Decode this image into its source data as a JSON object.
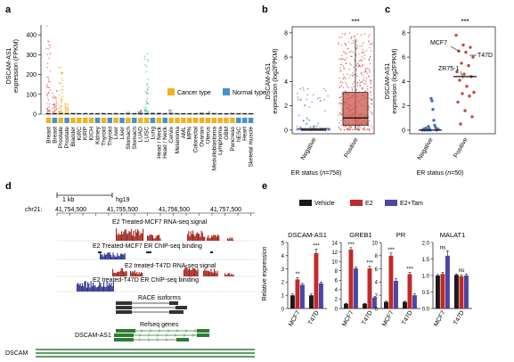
{
  "colors": {
    "cancer": "#F0B21E",
    "normal": "#4A90C8",
    "breast": "#E6615A",
    "lusc": "#3DBE8E",
    "ckw": "#5B5BA6",
    "box_positive": "#C9564B",
    "neg_dots": "#4F6FB0",
    "pos_dots": "#C8473F",
    "track_red": "#A2231D",
    "track_blue": "#2A2F8C",
    "track_black": "#222222",
    "gene_green": "#2E7D32",
    "vehicle": "#1A1A1A",
    "e2": "#C02A2A",
    "e2tam": "#4B45A6",
    "star_col": "#111111"
  },
  "panel_letters": {
    "a": "a",
    "b": "b",
    "c": "c",
    "d": "d",
    "e": "e"
  },
  "panel_a": {
    "ylabel": "DSCAM-AS1\nexpression (FPKM)",
    "yticks": [
      "0",
      "100",
      "200",
      "300",
      "400"
    ],
    "legend": {
      "cancer": "Cancer type",
      "normal": "Normal type"
    },
    "categories": [
      {
        "name": "Breast",
        "type": "cancer"
      },
      {
        "name": "Breast",
        "type": "normal"
      },
      {
        "name": "Prostate",
        "type": "cancer"
      },
      {
        "name": "Prostate",
        "type": "normal"
      },
      {
        "name": "Bladder",
        "type": "cancer"
      },
      {
        "name": "KIRC",
        "type": "cancer"
      },
      {
        "name": "KIRP",
        "type": "cancer"
      },
      {
        "name": "KICH",
        "type": "cancer"
      },
      {
        "name": "Kidney",
        "type": "normal"
      },
      {
        "name": "Thyroid",
        "type": "cancer"
      },
      {
        "name": "Thyroid",
        "type": "normal"
      },
      {
        "name": "Liver",
        "type": "cancer"
      },
      {
        "name": "Liver",
        "type": "normal"
      },
      {
        "name": "Stomach",
        "type": "cancer"
      },
      {
        "name": "Stomach",
        "type": "normal"
      },
      {
        "name": "LUAD",
        "type": "cancer"
      },
      {
        "name": "LUSC",
        "type": "cancer"
      },
      {
        "name": "Lung",
        "type": "normal"
      },
      {
        "name": "Head / Neck",
        "type": "cancer"
      },
      {
        "name": "Head / Neck",
        "type": "normal"
      },
      {
        "name": "Cervix",
        "type": "cancer"
      },
      {
        "name": "Melanoma",
        "type": "cancer"
      },
      {
        "name": "AML",
        "type": "cancer"
      },
      {
        "name": "MPN",
        "type": "cancer"
      },
      {
        "name": "Colorectal",
        "type": "cancer"
      },
      {
        "name": "Ovarian",
        "type": "cancer"
      },
      {
        "name": "Uterus",
        "type": "cancer"
      },
      {
        "name": "Medulloblastoma",
        "type": "cancer"
      },
      {
        "name": "Lymphoma",
        "type": "cancer"
      },
      {
        "name": "GBM",
        "type": "cancer"
      },
      {
        "name": "Pancreas",
        "type": "cancer"
      },
      {
        "name": "hESC",
        "type": "normal"
      },
      {
        "name": "Heart",
        "type": "normal"
      },
      {
        "name": "Skeletal muscle",
        "type": "normal"
      }
    ],
    "chart_data": {
      "type": "scatter",
      "ylim": [
        0,
        450
      ],
      "approx_max_per_category": [
        450,
        120,
        240,
        60,
        10,
        5,
        5,
        5,
        3,
        5,
        3,
        5,
        3,
        10,
        5,
        20,
        355,
        8,
        10,
        5,
        25,
        5,
        3,
        3,
        5,
        10,
        15,
        5,
        3,
        3,
        5,
        3,
        3,
        3
      ]
    }
  },
  "panel_b": {
    "ylabel": "DSCAM-AS1\nexpression (log2FPKM)",
    "xlabel": "ER status (n=758)",
    "xlabel_pre": "ER status (",
    "xlabel_n": "n",
    "xlabel_post": "=758)",
    "yticks": [
      "0",
      "2",
      "4",
      "6",
      "8"
    ],
    "categories": [
      "Negative",
      "Positive"
    ],
    "significance": "***",
    "chart_data": {
      "type": "box",
      "ylim": [
        -0.3,
        8.5
      ],
      "boxes": [
        {
          "name": "Negative",
          "q1": 0,
          "median": 0,
          "q3": 0.1,
          "whisker_low": 0,
          "whisker_high": 0.4
        },
        {
          "name": "Positive",
          "q1": 0.4,
          "median": 1.0,
          "q3": 3.1,
          "whisker_low": 0,
          "whisker_high": 7.5
        }
      ]
    }
  },
  "panel_c": {
    "ylabel": "DSCAM-AS1\nexpression (log2FPKM)",
    "xlabel": "ER status (n=50)",
    "xlabel_pre": "ER status (",
    "xlabel_n": "n",
    "xlabel_post": "=50)",
    "yticks": [
      "0",
      "2",
      "4",
      "6",
      "8"
    ],
    "categories": [
      "Negative",
      "Positive"
    ],
    "significance": "***",
    "annotations": [
      "MCF7",
      "T47D",
      "ZR75-1"
    ],
    "chart_data": {
      "type": "scatter",
      "ylim": [
        -0.3,
        8.5
      ],
      "medians": [
        0,
        4.4
      ],
      "negative": [
        0,
        0.05,
        0.1,
        0,
        0.2,
        0.4,
        0.8,
        1.7,
        2.4,
        2.6,
        0,
        0.1,
        0.3,
        0,
        0.05,
        0.15,
        0,
        0.1
      ],
      "positive": [
        7.8,
        7.0,
        6.8,
        6.5,
        6.4,
        6.0,
        5.5,
        5.3,
        4.8,
        4.6,
        4.4,
        4.1,
        3.6,
        3.1,
        3.0,
        2.8,
        2.3,
        1.6,
        1.1,
        0.5
      ]
    }
  },
  "panel_d": {
    "scale": "1 kb",
    "genome": "hg19",
    "chrom": "chr21:",
    "coords": [
      "41,754,500",
      "41,755,500",
      "41,756,500",
      "41,757,500"
    ],
    "tracks": [
      "E2 Treated-MCF7 RNA-seq signal",
      "E2 Treated-MCF7 ER ChIP-seq binding",
      "E2 treated-T47D RNA-seq signal",
      "E2 treated-T47D ER ChIP-seq binding"
    ],
    "race": "RACE isoforms",
    "refseq": "Refseq genes",
    "gene1": "DSCAM-AS1",
    "gene2": "DSCAM"
  },
  "panel_e": {
    "legend": [
      "Vehicle",
      "E2",
      "E2+Tam"
    ],
    "ylabel": "Relative expression",
    "xcats": [
      "MCF7",
      "T47D"
    ],
    "ns": "ns",
    "chart_data": [
      {
        "type": "bar",
        "title": "DSCAM-AS1",
        "yticks": [
          "0",
          "1",
          "2",
          "3",
          "4",
          "5"
        ],
        "ylim": [
          0,
          5
        ],
        "series": [
          {
            "name": "Vehicle",
            "values": [
              1,
              1
            ]
          },
          {
            "name": "E2",
            "values": [
              2.2,
              4.2
            ]
          },
          {
            "name": "E2+Tam",
            "values": [
              1.8,
              1.9
            ]
          }
        ],
        "errors": [
          [
            0.1,
            0.1
          ],
          [
            0.15,
            0.3
          ],
          [
            0.1,
            0.1
          ]
        ],
        "sig": [
          "**",
          "***"
        ]
      },
      {
        "type": "bar",
        "title": "GREB1",
        "yticks": [
          "0",
          "2",
          "4",
          "6",
          "8",
          "10",
          "12",
          "14"
        ],
        "ylim": [
          0,
          14
        ],
        "series": [
          {
            "name": "Vehicle",
            "values": [
              1,
              1
            ]
          },
          {
            "name": "E2",
            "values": [
              12.5,
              8.5
            ]
          },
          {
            "name": "E2+Tam",
            "values": [
              8.5,
              2.3
            ]
          }
        ],
        "errors": [
          [
            0.1,
            0.1
          ],
          [
            0.4,
            0.5
          ],
          [
            0.3,
            0.2
          ]
        ],
        "sig": [
          "***",
          "***"
        ]
      },
      {
        "type": "bar",
        "title": "PR",
        "yticks": [
          "0",
          "2",
          "4",
          "6",
          "8",
          "10"
        ],
        "ylim": [
          0,
          10
        ],
        "series": [
          {
            "name": "Vehicle",
            "values": [
              1,
              1
            ]
          },
          {
            "name": "E2",
            "values": [
              8.0,
              5.2
            ]
          },
          {
            "name": "E2+Tam",
            "values": [
              4.2,
              2.0
            ]
          }
        ],
        "errors": [
          [
            0.1,
            0.1
          ],
          [
            0.4,
            0.3
          ],
          [
            0.3,
            0.2
          ]
        ],
        "sig": [
          "***",
          "***"
        ]
      },
      {
        "type": "bar",
        "title": "MALAT1",
        "yticks": [
          "0.0",
          "0.5",
          "1.0",
          "1.5",
          "2.0"
        ],
        "ylim": [
          0,
          2
        ],
        "series": [
          {
            "name": "Vehicle",
            "values": [
              1.0,
              1.02
            ]
          },
          {
            "name": "E2",
            "values": [
              1.05,
              0.98
            ]
          },
          {
            "name": "E2+Tam",
            "values": [
              1.6,
              1.0
            ]
          }
        ],
        "errors": [
          [
            0.03,
            0.03
          ],
          [
            0.05,
            0.04
          ],
          [
            0.15,
            0.04
          ]
        ],
        "sig": [
          "ns",
          "ns"
        ]
      }
    ]
  }
}
